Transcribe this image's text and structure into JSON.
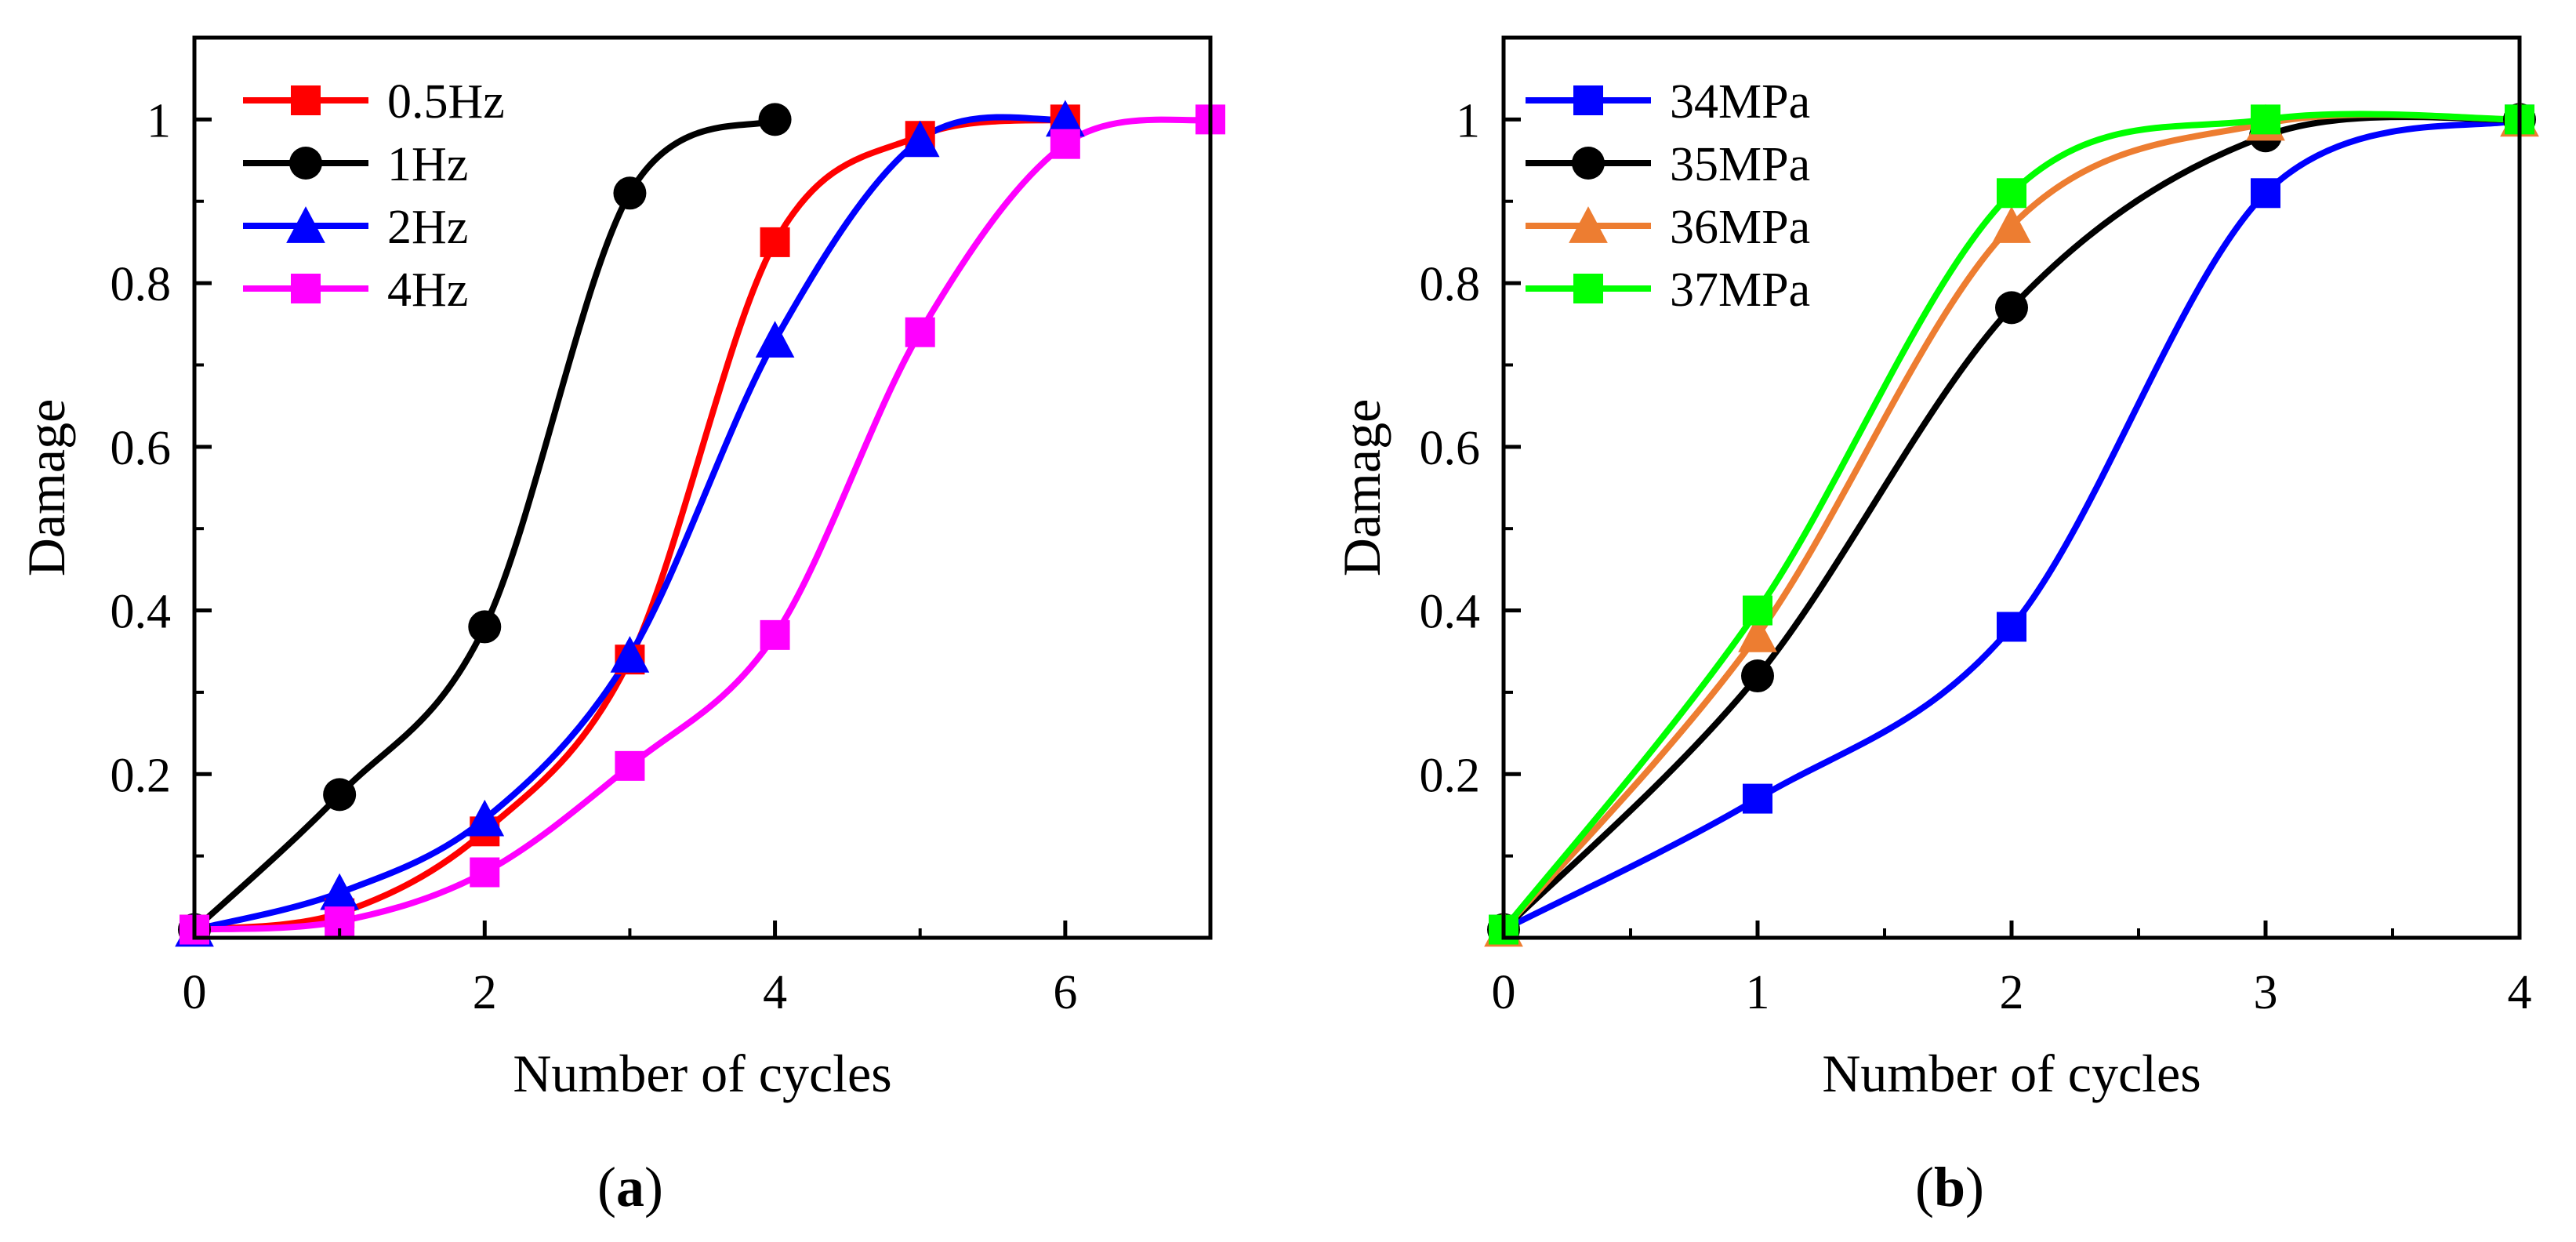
{
  "chart_data": [
    {
      "id": "a",
      "type": "line",
      "caption_letter": "a",
      "caption_open": "(",
      "caption_close": ")",
      "xlabel": "Number of cycles",
      "ylabel": "Damage",
      "xlim": [
        0,
        7
      ],
      "ylim": [
        0,
        1.1
      ],
      "xticks_major": [
        0,
        2,
        4,
        6
      ],
      "xtick_labels": [
        "0",
        "2",
        "4",
        "6"
      ],
      "xticks_minor": [
        1,
        3,
        5,
        7
      ],
      "yticks": [
        0.2,
        0.4,
        0.6,
        0.8,
        1.0
      ],
      "ytick_labels": [
        "0.2",
        "0.4",
        "0.6",
        "0.8",
        "1"
      ],
      "legend_position": "top-left",
      "series": [
        {
          "name": "0.5Hz",
          "color": "#ff0000",
          "marker": "square",
          "x": [
            0,
            1,
            2,
            3,
            4,
            5,
            6
          ],
          "y": [
            0.01,
            0.03,
            0.13,
            0.34,
            0.85,
            0.98,
            1.0
          ]
        },
        {
          "name": "1Hz",
          "color": "#000000",
          "marker": "circle",
          "x": [
            0,
            1,
            2,
            3,
            4
          ],
          "y": [
            0.01,
            0.175,
            0.38,
            0.91,
            1.0
          ]
        },
        {
          "name": "2Hz",
          "color": "#0000ff",
          "marker": "triangle",
          "x": [
            0,
            1,
            2,
            3,
            4,
            5,
            6
          ],
          "y": [
            0.01,
            0.055,
            0.145,
            0.345,
            0.73,
            0.975,
            1.0
          ]
        },
        {
          "name": "4Hz",
          "color": "#ff00ff",
          "marker": "square",
          "x": [
            0,
            1,
            2,
            3,
            4,
            5,
            6,
            7
          ],
          "y": [
            0.01,
            0.02,
            0.08,
            0.21,
            0.37,
            0.74,
            0.97,
            1.0
          ]
        }
      ]
    },
    {
      "id": "b",
      "type": "line",
      "caption_letter": "b",
      "caption_open": "(",
      "caption_close": ")",
      "xlabel": "Number of cycles",
      "ylabel": "Damage",
      "xlim": [
        0,
        4
      ],
      "ylim": [
        0,
        1.1
      ],
      "xticks_major": [
        0,
        1,
        2,
        3,
        4
      ],
      "xtick_labels": [
        "0",
        "1",
        "2",
        "3",
        "4"
      ],
      "xticks_minor": [
        0.5,
        1.5,
        2.5,
        3.5
      ],
      "yticks": [
        0.2,
        0.4,
        0.6,
        0.8,
        1.0
      ],
      "ytick_labels": [
        "0.2",
        "0.4",
        "0.6",
        "0.8",
        "1"
      ],
      "legend_position": "top-left",
      "series": [
        {
          "name": "34MPa",
          "color": "#0000ff",
          "marker": "square",
          "x": [
            0,
            1,
            2,
            3,
            4
          ],
          "y": [
            0.01,
            0.17,
            0.38,
            0.91,
            1.0
          ]
        },
        {
          "name": "35MPa",
          "color": "#000000",
          "marker": "circle",
          "x": [
            0,
            1,
            2,
            3,
            4
          ],
          "y": [
            0.01,
            0.32,
            0.77,
            0.98,
            1.0
          ]
        },
        {
          "name": "36MPa",
          "color": "#ed7d31",
          "marker": "triangle",
          "x": [
            0,
            1,
            2,
            3,
            4
          ],
          "y": [
            0.01,
            0.37,
            0.87,
            0.995,
            1.0
          ]
        },
        {
          "name": "37MPa",
          "color": "#00ff00",
          "marker": "square",
          "x": [
            0,
            1,
            2,
            3,
            4
          ],
          "y": [
            0.01,
            0.4,
            0.91,
            1.0,
            1.0
          ]
        }
      ]
    }
  ]
}
